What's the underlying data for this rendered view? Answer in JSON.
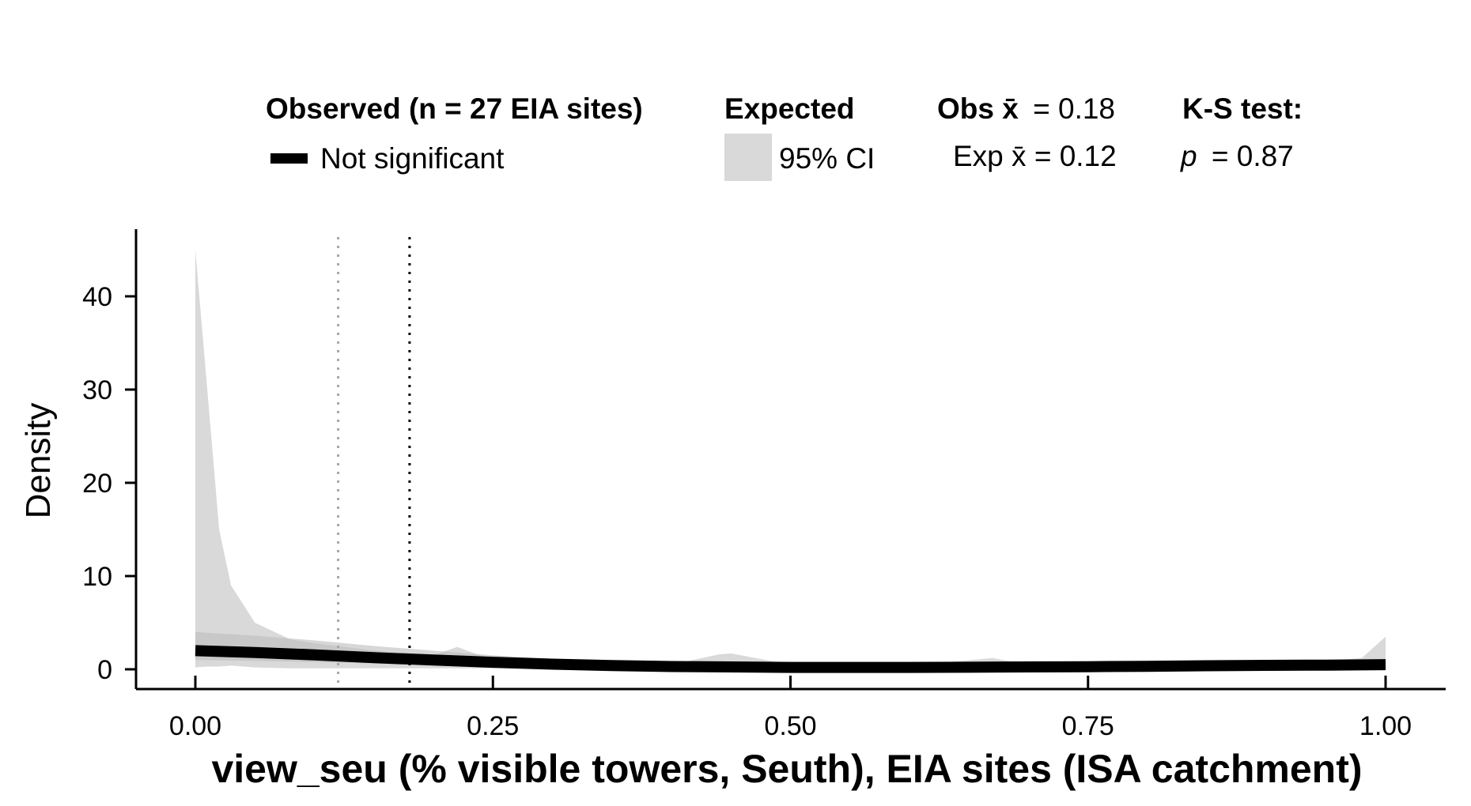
{
  "legend": {
    "observed_title": "Observed (n = 27 EIA sites)",
    "observed_item": "Not significant",
    "expected_title": "Expected",
    "expected_item": "95% CI",
    "obs_mean_label": "Obs x̄",
    "obs_mean_value": "= 0.18",
    "exp_mean_label": "Exp x̄ = 0.12",
    "ks_title": "K-S test:",
    "ks_p_symbol": "p",
    "ks_p_value": "= 0.87"
  },
  "chart_data": {
    "type": "area",
    "xlabel": "view_seu (% visible towers, Seuth), EIA sites (ISA catchment)",
    "ylabel": "Density",
    "xlim": [
      0,
      1
    ],
    "ylim": [
      0,
      45
    ],
    "x_ticks": [
      "0.00",
      "0.25",
      "0.50",
      "0.75",
      "1.00"
    ],
    "y_ticks": [
      "0",
      "10",
      "20",
      "30",
      "40"
    ],
    "grid": false,
    "legend_position": "top",
    "observed_mean": 0.18,
    "expected_mean": 0.12,
    "ks_p_value": 0.87,
    "colors": {
      "observed": "#000000",
      "ci_band": "#d9d9d9",
      "ci_core": "#bdbdbd",
      "obs_mean_line": "#000000",
      "exp_mean_line": "#a6a6a6"
    },
    "series": [
      {
        "name": "Not significant",
        "x": [
          0.0,
          0.05,
          0.1,
          0.15,
          0.2,
          0.25,
          0.3,
          0.35,
          0.4,
          0.45,
          0.5,
          0.55,
          0.6,
          0.65,
          0.7,
          0.75,
          0.8,
          0.85,
          0.9,
          0.95,
          1.0
        ],
        "y": [
          2.0,
          1.8,
          1.55,
          1.25,
          1.0,
          0.75,
          0.55,
          0.4,
          0.3,
          0.25,
          0.2,
          0.2,
          0.2,
          0.22,
          0.25,
          0.28,
          0.32,
          0.38,
          0.42,
          0.45,
          0.5
        ]
      },
      {
        "name": "95% CI",
        "x": [
          0.0,
          0.01,
          0.02,
          0.03,
          0.05,
          0.08,
          0.1,
          0.15,
          0.2,
          0.22,
          0.25,
          0.3,
          0.35,
          0.4,
          0.44,
          0.45,
          0.5,
          0.6,
          0.67,
          0.7,
          0.8,
          0.9,
          0.95,
          0.98,
          1.0
        ],
        "y_low": [
          0.2,
          0.3,
          0.3,
          0.4,
          0.2,
          0.1,
          0.1,
          0.1,
          0.1,
          0.1,
          0.1,
          0.1,
          0.0,
          0.0,
          0.0,
          0.0,
          0.0,
          0.0,
          0.0,
          0.0,
          0.0,
          0.0,
          0.0,
          0.0,
          0.0
        ],
        "y_high": [
          45,
          30,
          15,
          9,
          5,
          3.2,
          2.8,
          2.0,
          1.5,
          2.4,
          1.0,
          0.8,
          0.6,
          0.5,
          1.6,
          1.7,
          0.5,
          0.4,
          1.2,
          0.5,
          0.5,
          1.0,
          0.9,
          1.2,
          3.5
        ]
      }
    ]
  }
}
